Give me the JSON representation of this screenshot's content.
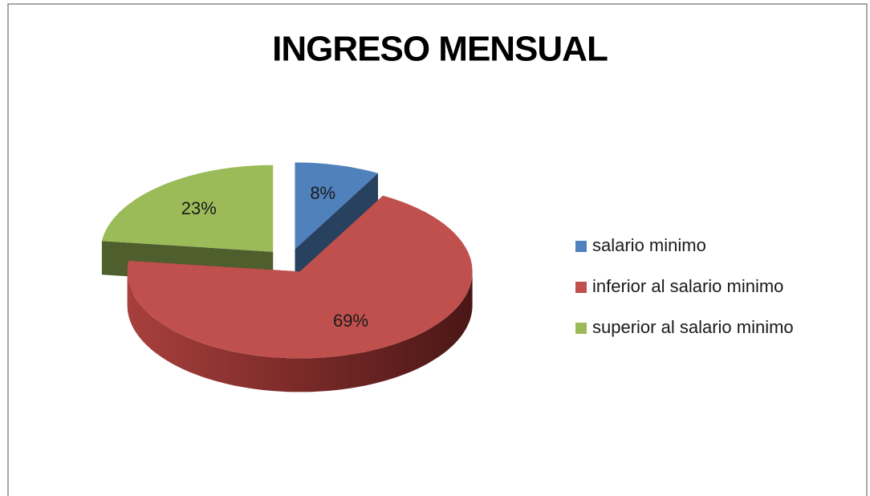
{
  "chart_data": {
    "type": "pie",
    "title": "INGRESO MENSUAL",
    "categories": [
      "salario minimo",
      "inferior al salario minimo",
      "superior al salario minimo"
    ],
    "values": [
      8,
      69,
      23
    ],
    "value_labels": [
      "8%",
      "69%",
      "23%"
    ],
    "colors": [
      "#4f81bd",
      "#c0504d",
      "#9bbb59"
    ],
    "legend": "right",
    "exploded": true,
    "three_d": true
  }
}
